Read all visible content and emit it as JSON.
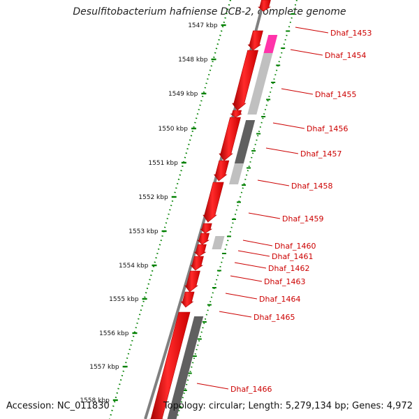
{
  "title": "Desulfitobacterium hafniense DCB-2, complete genome",
  "accession": "Accession: NC_011830",
  "topology": "Topology: circular; Length: 5,279,134 bp; Genes: 4,972",
  "ruler_ticks": [
    "1547 kbp",
    "1548 kbp",
    "1549 kbp",
    "1550 kbp",
    "1551 kbp",
    "1552 kbp",
    "1553 kbp",
    "1554 kbp",
    "1555 kbp",
    "1556 kbp",
    "1557 kbp",
    "1558 kbp"
  ],
  "gene_labels": [
    "Dhaf_1453",
    "Dhaf_1454",
    "Dhaf_1455",
    "Dhaf_1456",
    "Dhaf_1457",
    "Dhaf_1458",
    "Dhaf_1459",
    "Dhaf_1460",
    "Dhaf_1461",
    "Dhaf_1462",
    "Dhaf_1463",
    "Dhaf_1464",
    "Dhaf_1465",
    "Dhaf_1466"
  ],
  "colors": {
    "cds": "#ff0000",
    "cds_shade": "#b00000",
    "label": "#cc0000",
    "backbone": "#808080",
    "ruler": "#008000",
    "gc_dark": "#606060",
    "gc_light": "#c0c0c0",
    "gc_pink": "#ff33aa"
  }
}
